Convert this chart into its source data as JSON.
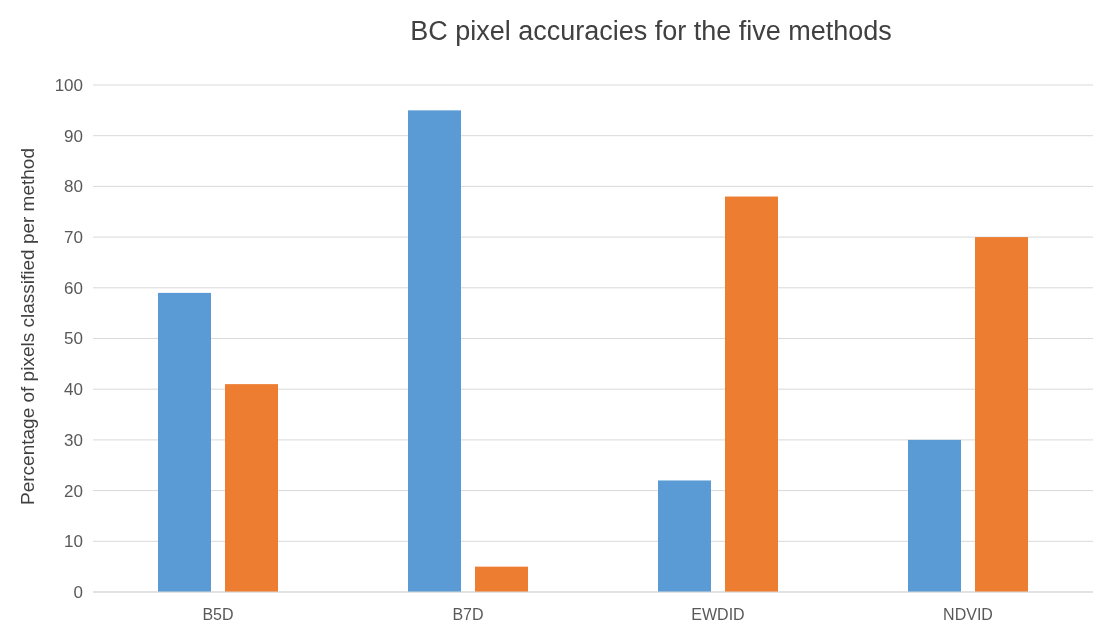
{
  "chart_data": {
    "type": "bar",
    "title": "BC pixel accuracies for the five methods",
    "ylabel": "Percentage of pixels classified per method",
    "categories": [
      "B5D",
      "B7D",
      "EWDID",
      "NDVID"
    ],
    "series": [
      {
        "color": "#5b9bd5",
        "values": [
          59,
          95,
          22,
          30
        ]
      },
      {
        "color": "#ed7d31",
        "values": [
          41,
          5,
          78,
          70
        ]
      }
    ],
    "ylim": [
      0,
      100
    ],
    "yticks": [
      0,
      10,
      20,
      30,
      40,
      50,
      60,
      70,
      80,
      90,
      100
    ],
    "grid": "y"
  }
}
